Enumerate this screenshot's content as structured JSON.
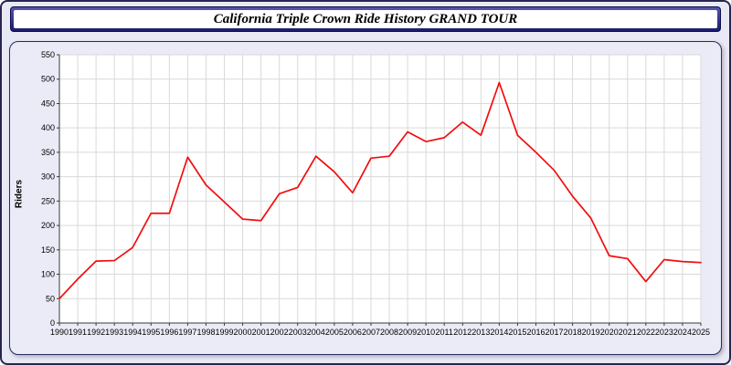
{
  "title": "California Triple Crown Ride History GRAND TOUR",
  "colors": {
    "line": "#f20d0d",
    "grid": "#d9d9d9",
    "axis": "#3a3a3a",
    "plot_background": "#ffffff",
    "panel_background": "#ebebf7",
    "title_bar": "#1b1b6e"
  },
  "chart_data": {
    "type": "line",
    "title": "California Triple Crown Ride History GRAND TOUR",
    "xlabel": "",
    "ylabel": "Riders",
    "ylim": [
      0,
      550
    ],
    "ytick_step": 50,
    "grid": true,
    "legend": "none",
    "x": [
      1990,
      1991,
      1992,
      1993,
      1994,
      1995,
      1996,
      1997,
      1998,
      1999,
      2000,
      2001,
      2002,
      2003,
      2004,
      2005,
      2006,
      2007,
      2008,
      2009,
      2010,
      2011,
      2012,
      2013,
      2014,
      2015,
      2016,
      2017,
      2018,
      2019,
      2020,
      2021,
      2022,
      2023,
      2024,
      2025
    ],
    "values": [
      50,
      90,
      127,
      128,
      155,
      225,
      225,
      340,
      283,
      248,
      213,
      210,
      265,
      278,
      342,
      310,
      267,
      338,
      342,
      392,
      372,
      380,
      412,
      385,
      493,
      385,
      350,
      313,
      260,
      215,
      138,
      132,
      85,
      130,
      126,
      124
    ]
  }
}
